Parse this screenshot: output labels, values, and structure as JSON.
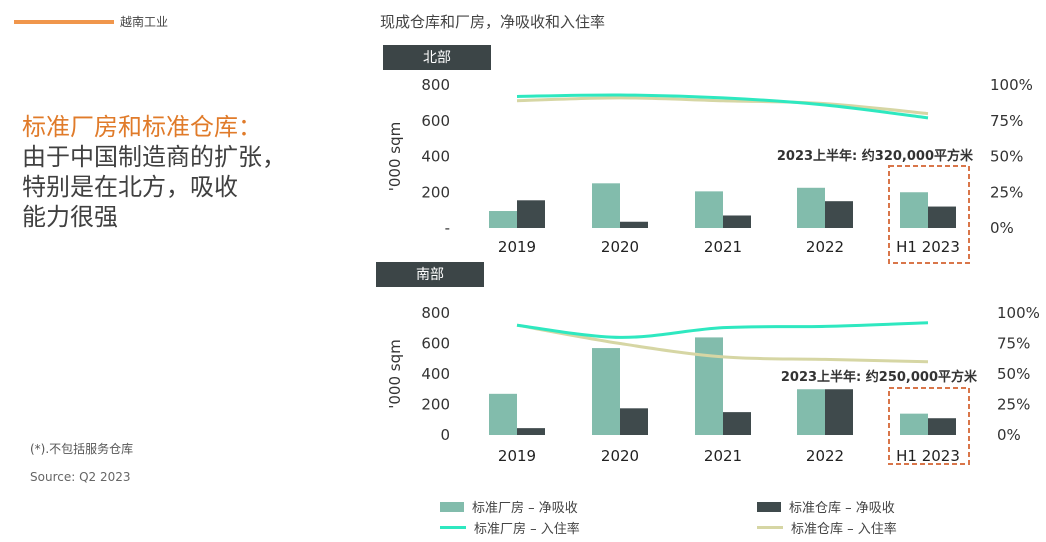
{
  "header": {
    "section": "越南工业"
  },
  "headline": {
    "line1": "标准厂房和标准仓库：",
    "line2": "由于中国制造商的扩张，",
    "line3": "特别是在北方，吸收",
    "line4": "能力很强"
  },
  "footnote": "(*).不包括服务仓库",
  "source": "Source: Q2 2023",
  "chart_title": "现成仓库和厂房，净吸收和入住率",
  "legend": {
    "factory_abs": "标准厂房 – 净吸收",
    "warehouse_abs": "标准仓库 – 净吸收",
    "factory_occ": "标准厂房 – 入住率",
    "warehouse_occ": "标准仓库 – 入住率"
  },
  "colors": {
    "factory_bar": "#82bcac",
    "warehouse_bar": "#3f4a4c",
    "factory_line": "#2ee8c0",
    "warehouse_line": "#d6d6a4",
    "tag_bg": "#3c4547",
    "callout_border": "#d9764a",
    "accent": "#e07b2a"
  },
  "chart_data": [
    {
      "type": "bar",
      "region": "北部",
      "categories": [
        "2019",
        "2020",
        "2021",
        "2022",
        "H1 2023"
      ],
      "series": [
        {
          "name": "标准厂房 – 净吸收",
          "values": [
            95,
            250,
            205,
            225,
            200
          ]
        },
        {
          "name": "标准仓库 – 净吸收",
          "values": [
            155,
            35,
            70,
            150,
            120
          ]
        }
      ],
      "lines": [
        {
          "name": "标准厂房 – 入住率",
          "values": [
            92,
            93,
            91,
            86,
            77
          ]
        },
        {
          "name": "标准仓库 – 入住率",
          "values": [
            89,
            91,
            89,
            87,
            80
          ]
        }
      ],
      "ylabel": "'000 sqm",
      "yticks": [
        "800",
        "600",
        "400",
        "200",
        "-"
      ],
      "ylim": [
        0,
        800
      ],
      "y2ticks": [
        "100%",
        "75%",
        "50%",
        "25%",
        "0%"
      ],
      "y2lim": [
        0,
        100
      ],
      "annotation": "2023上半年: 约320,000平方米"
    },
    {
      "type": "bar",
      "region": "南部",
      "categories": [
        "2019",
        "2020",
        "2021",
        "2022",
        "H1 2023"
      ],
      "series": [
        {
          "name": "标准厂房 – 净吸收",
          "values": [
            270,
            570,
            640,
            300,
            140
          ]
        },
        {
          "name": "标准仓库 – 净吸收",
          "values": [
            45,
            175,
            150,
            300,
            110
          ]
        }
      ],
      "lines": [
        {
          "name": "标准厂房 – 入住率",
          "values": [
            90,
            80,
            88,
            89,
            92
          ]
        },
        {
          "name": "标准仓库 – 入住率",
          "values": [
            90,
            75,
            64,
            62,
            60
          ]
        }
      ],
      "ylabel": "'000 sqm",
      "yticks": [
        "800",
        "600",
        "400",
        "200",
        "0"
      ],
      "ylim": [
        0,
        800
      ],
      "y2ticks": [
        "100%",
        "75%",
        "50%",
        "25%",
        "0%"
      ],
      "y2lim": [
        0,
        100
      ],
      "annotation": "2023上半年: 约250,000平方米"
    }
  ]
}
